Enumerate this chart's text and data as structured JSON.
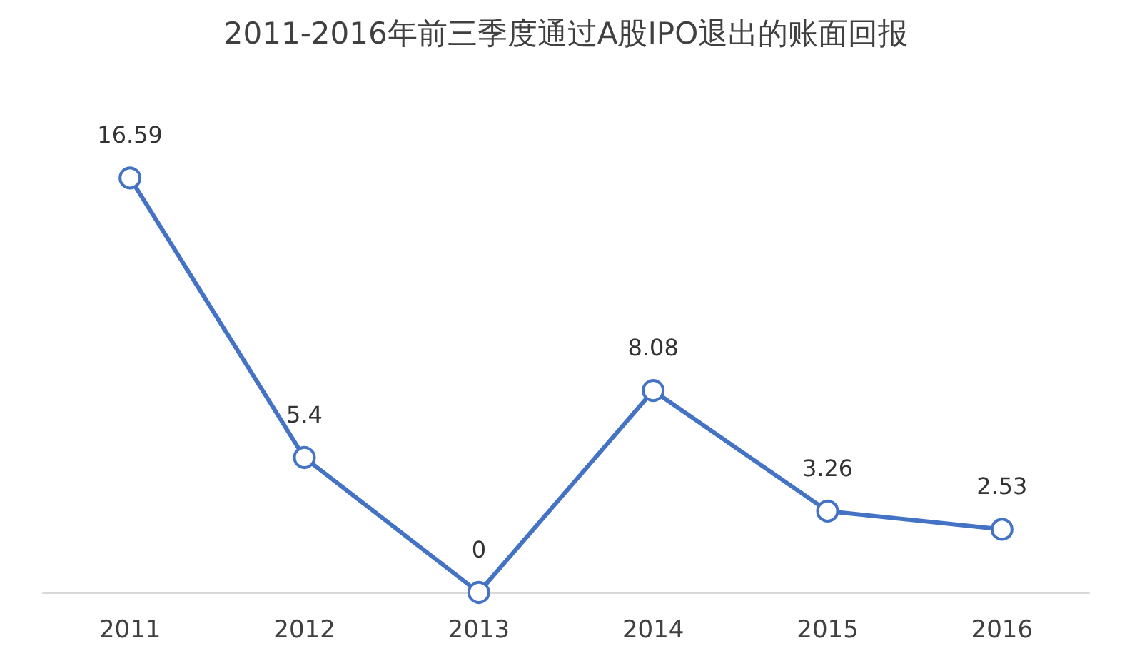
{
  "chart_data": {
    "type": "line",
    "title": "2011-2016年前三季度通过A股IPO退出的账面回报",
    "categories": [
      "2011",
      "2012",
      "2013",
      "2014",
      "2015",
      "2016"
    ],
    "series": [
      {
        "color": "#4472c4",
        "values": [
          16.59,
          5.4,
          0,
          8.08,
          3.26,
          2.53
        ]
      }
    ],
    "data_labels": true,
    "marker": "circle",
    "line_style": "solid"
  }
}
